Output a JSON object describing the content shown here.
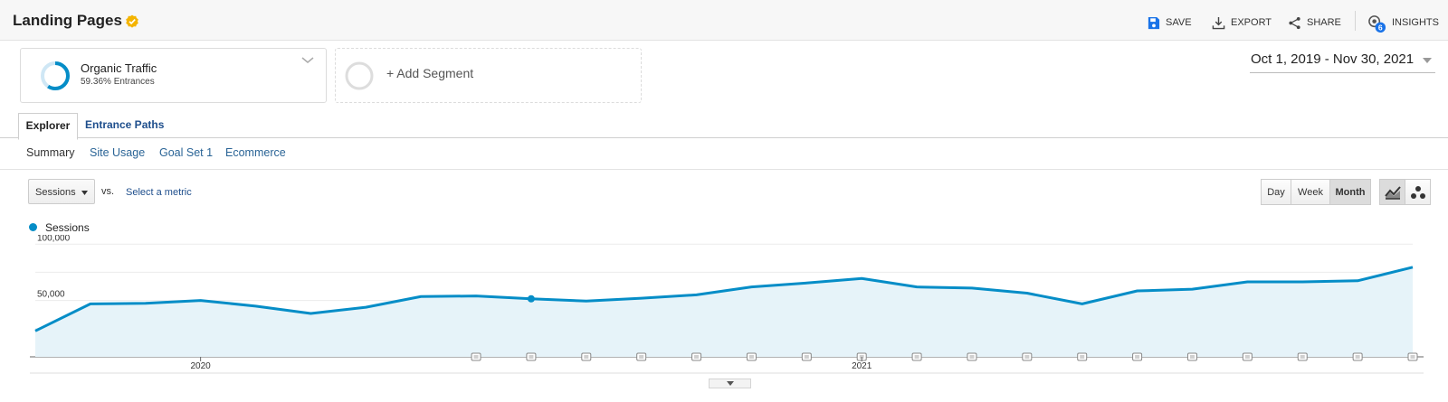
{
  "header": {
    "title": "Landing Pages",
    "actions": [
      {
        "label": "SAVE",
        "icon": "save-icon"
      },
      {
        "label": "EXPORT",
        "icon": "export-icon"
      },
      {
        "label": "SHARE",
        "icon": "share-icon"
      },
      {
        "label": "INSIGHTS",
        "icon": "insights-icon",
        "badge": "6"
      }
    ]
  },
  "segments": {
    "active": {
      "name": "Organic Traffic",
      "subtitle": "59.36% Entrances",
      "share": 0.5936
    },
    "add_label": "+ Add Segment"
  },
  "date_range": "Oct 1, 2019 - Nov 30, 2021",
  "tabs": [
    {
      "label": "Explorer",
      "active": true
    },
    {
      "label": "Entrance Paths",
      "active": false
    }
  ],
  "subtabs": [
    "Summary",
    "Site Usage",
    "Goal Set 1",
    "Ecommerce"
  ],
  "controls": {
    "metric": "Sessions",
    "vs": "vs.",
    "select_metric": "Select a metric",
    "periods": [
      "Day",
      "Week",
      "Month"
    ],
    "active_period": "Month"
  },
  "colors": {
    "accent": "#058dc7",
    "area": "#e6f3f9",
    "badge": "#f4b400",
    "link": "#1e4e8c"
  },
  "chart_data": {
    "type": "line",
    "legend": "Sessions",
    "y_ticks": [
      "100,000",
      "50,000"
    ],
    "ylim": [
      0,
      105000
    ],
    "x_labels": [
      "2020",
      "2021"
    ],
    "x": [
      "2019-10",
      "2019-11",
      "2019-12",
      "2020-01",
      "2020-02",
      "2020-03",
      "2020-04",
      "2020-05",
      "2020-06",
      "2020-07",
      "2020-08",
      "2020-09",
      "2020-10",
      "2020-11",
      "2020-12",
      "2021-01",
      "2021-02",
      "2021-03",
      "2021-04",
      "2021-05",
      "2021-06",
      "2021-07",
      "2021-08",
      "2021-09",
      "2021-10",
      "2021-11"
    ],
    "series": [
      {
        "name": "Sessions",
        "values": [
          23000,
          47000,
          47500,
          50000,
          45000,
          38500,
          44000,
          53500,
          54000,
          51500,
          49500,
          52000,
          55000,
          62000,
          65500,
          69500,
          62000,
          61000,
          56500,
          47000,
          58500,
          60000,
          66500,
          66500,
          67500,
          79500
        ]
      }
    ],
    "highlight_index": 9,
    "annotation_indices": [
      8,
      9,
      10,
      11,
      12,
      13,
      14,
      15,
      16,
      17,
      18,
      19,
      20,
      21,
      22,
      23,
      24,
      25
    ]
  }
}
